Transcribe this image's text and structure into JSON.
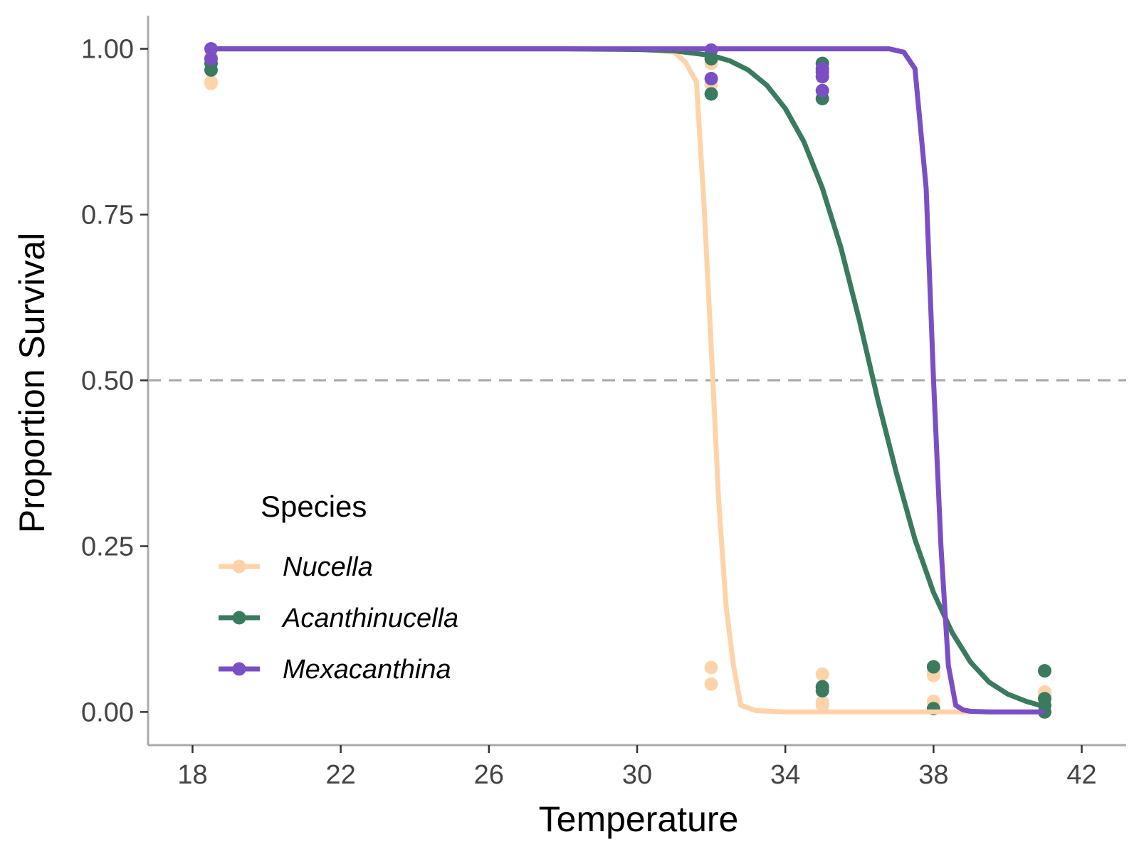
{
  "chart_data": {
    "type": "line",
    "xlabel": "Temperature",
    "ylabel": "Proportion Survival",
    "xlim": [
      16.8,
      43.2
    ],
    "ylim": [
      -0.05,
      1.05
    ],
    "x_ticks": [
      18,
      22,
      26,
      30,
      34,
      38,
      42
    ],
    "x_tick_labels": [
      "18",
      "22",
      "26",
      "30",
      "34",
      "38",
      "42"
    ],
    "y_ticks": [
      0,
      0.25,
      0.5,
      0.75,
      1
    ],
    "y_tick_labels": [
      "0.00",
      "0.25",
      "0.50",
      "0.75",
      "1.00"
    ],
    "reference_line": {
      "y": 0.5,
      "style": "dashed",
      "color": "#AAAAAA"
    },
    "grid": false,
    "legend": {
      "title": "Species",
      "position": "bottom-left-inside",
      "entries": [
        "Nucella",
        "Acanthinucella",
        "Mexacanthina"
      ]
    },
    "series": [
      {
        "name": "Nucella",
        "color": "#FFD3AA",
        "curve": {
          "x": [
            18.5,
            30,
            31,
            31.3,
            31.6,
            31.8,
            32.0,
            32.2,
            32.4,
            32.6,
            32.8,
            33.2,
            34,
            36,
            38,
            39
          ],
          "y": [
            1.0,
            1.0,
            0.995,
            0.98,
            0.95,
            0.77,
            0.55,
            0.32,
            0.16,
            0.07,
            0.01,
            0.002,
            0.0,
            0.0,
            0.0,
            0.0
          ]
        },
        "points": {
          "x": [
            18.5,
            18.5,
            18.5,
            32,
            32,
            32,
            32,
            35,
            35,
            35,
            35,
            38,
            38,
            38,
            41,
            41
          ],
          "y": [
            0.99,
            0.95,
            0.948,
            0.978,
            0.946,
            0.067,
            0.042,
            0.057,
            0.037,
            0.015,
            0.01,
            0.06,
            0.055,
            0.016,
            0.03,
            0.025
          ]
        }
      },
      {
        "name": "Acanthinucella",
        "color": "#3A7A5E",
        "curve": {
          "x": [
            18.5,
            28,
            30,
            31,
            32,
            32.5,
            33,
            33.5,
            34,
            34.5,
            35,
            35.5,
            36,
            36.5,
            37,
            37.5,
            38,
            38.5,
            39,
            39.5,
            40,
            40.5,
            41
          ],
          "y": [
            1.0,
            1.0,
            0.999,
            0.997,
            0.99,
            0.982,
            0.968,
            0.945,
            0.91,
            0.86,
            0.79,
            0.7,
            0.59,
            0.47,
            0.36,
            0.26,
            0.18,
            0.12,
            0.075,
            0.045,
            0.027,
            0.016,
            0.008
          ]
        },
        "points": {
          "x": [
            18.5,
            18.5,
            32,
            32,
            35,
            35,
            35,
            35,
            38,
            38,
            41,
            41,
            41,
            41
          ],
          "y": [
            0.968,
            0.978,
            0.932,
            0.985,
            0.978,
            0.925,
            0.032,
            0.038,
            0.068,
            0.005,
            0.062,
            0.02,
            0.01,
            0.0
          ]
        }
      },
      {
        "name": "Mexacanthina",
        "color": "#7B4FC4",
        "curve": {
          "x": [
            18.5,
            36,
            36.8,
            37.2,
            37.5,
            37.8,
            38.0,
            38.2,
            38.4,
            38.6,
            38.8,
            39.0,
            39.5,
            40,
            41
          ],
          "y": [
            1.0,
            1.0,
            1.0,
            0.995,
            0.97,
            0.79,
            0.5,
            0.25,
            0.07,
            0.01,
            0.003,
            0.001,
            0.0,
            0.0,
            0.0
          ]
        },
        "points": {
          "x": [
            18.5,
            18.5,
            32,
            32,
            35,
            35,
            35,
            35
          ],
          "y": [
            1.0,
            0.985,
            0.998,
            0.955,
            0.97,
            0.965,
            0.958,
            0.937
          ]
        }
      }
    ]
  }
}
